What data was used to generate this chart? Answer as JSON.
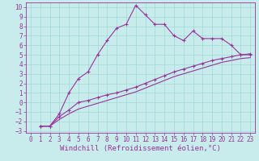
{
  "xlabel": "Windchill (Refroidissement éolien,°C)",
  "xlim": [
    -0.5,
    23.5
  ],
  "ylim": [
    -3.2,
    10.5
  ],
  "xticks": [
    0,
    1,
    2,
    3,
    4,
    5,
    6,
    7,
    8,
    9,
    10,
    11,
    12,
    13,
    14,
    15,
    16,
    17,
    18,
    19,
    20,
    21,
    22,
    23
  ],
  "yticks": [
    -3,
    -2,
    -1,
    0,
    1,
    2,
    3,
    4,
    5,
    6,
    7,
    8,
    9,
    10
  ],
  "background_color": "#c8ecec",
  "line_color": "#993399",
  "grid_color": "#a0d8d8",
  "series1_x": [
    1,
    2,
    3,
    4,
    5,
    6,
    7,
    8,
    9,
    10,
    11,
    12,
    13,
    14,
    15,
    16,
    17,
    18,
    19,
    20,
    21,
    22,
    23
  ],
  "series1_y": [
    -2.5,
    -2.5,
    -1.2,
    1.0,
    2.5,
    3.2,
    5.0,
    6.5,
    7.8,
    8.2,
    10.2,
    9.2,
    8.2,
    8.2,
    7.0,
    6.5,
    7.5,
    6.7,
    6.7,
    6.7,
    6.0,
    5.0,
    5.0
  ],
  "series2_x": [
    1,
    2,
    3,
    4,
    5,
    6,
    7,
    8,
    9,
    10,
    11,
    12,
    13,
    14,
    15,
    16,
    17,
    18,
    19,
    20,
    21,
    22,
    23
  ],
  "series2_y": [
    -2.5,
    -2.5,
    -1.5,
    -0.8,
    0.0,
    0.2,
    0.5,
    0.8,
    1.0,
    1.3,
    1.6,
    2.0,
    2.4,
    2.8,
    3.2,
    3.5,
    3.8,
    4.1,
    4.4,
    4.6,
    4.8,
    5.0,
    5.1
  ],
  "series3_x": [
    1,
    2,
    3,
    4,
    5,
    6,
    7,
    8,
    9,
    10,
    11,
    12,
    13,
    14,
    15,
    16,
    17,
    18,
    19,
    20,
    21,
    22,
    23
  ],
  "series3_y": [
    -2.5,
    -2.5,
    -1.8,
    -1.2,
    -0.7,
    -0.4,
    -0.1,
    0.2,
    0.5,
    0.8,
    1.1,
    1.5,
    1.9,
    2.3,
    2.7,
    3.0,
    3.3,
    3.6,
    3.9,
    4.2,
    4.4,
    4.6,
    4.7
  ],
  "tick_fontsize": 5.5,
  "label_fontsize": 6.5
}
